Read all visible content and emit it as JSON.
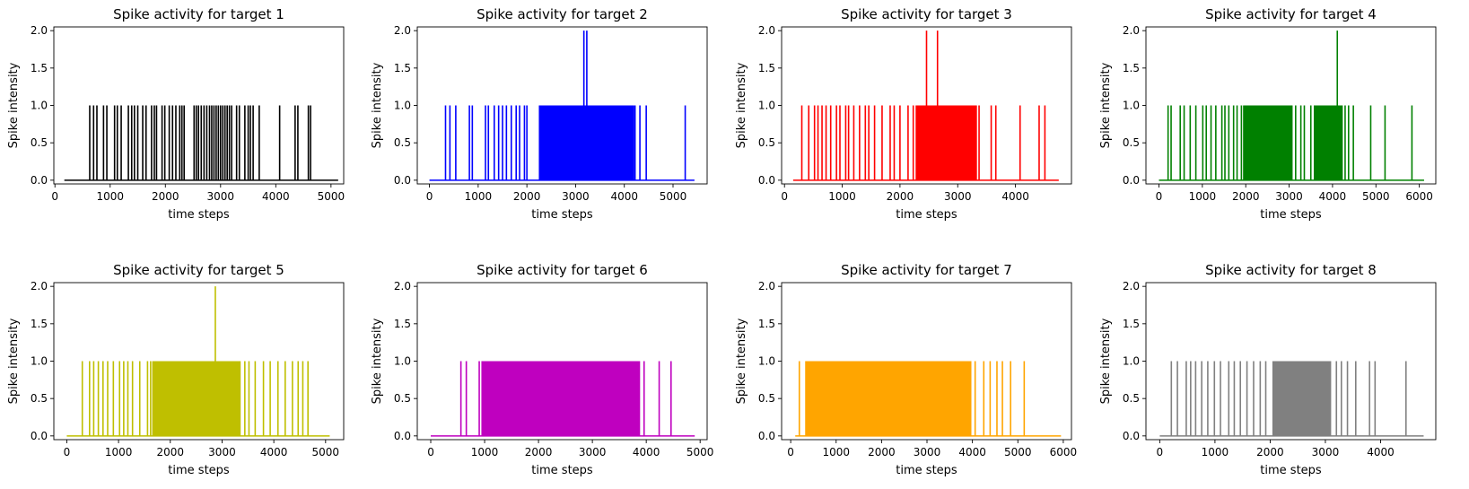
{
  "chart_data": [
    {
      "type": "line",
      "title": "Spike activity for target 1",
      "xlabel": "time steps",
      "ylabel": "Spike intensity",
      "color": "#000000",
      "xlim": [
        -20,
        5230
      ],
      "ylim": [
        -0.05,
        2.05
      ],
      "xticks": [
        0,
        1000,
        2000,
        3000,
        4000,
        5000
      ],
      "yticks": [
        0.0,
        0.5,
        1.0,
        1.5,
        2.0
      ],
      "ytick_labels": [
        "0.0",
        "0.5",
        "1.0",
        "1.5",
        "2.0"
      ],
      "range": [
        170,
        5130
      ],
      "spikes": [
        630,
        700,
        760,
        880,
        940,
        1080,
        1130,
        1200,
        1330,
        1390,
        1440,
        1500,
        1590,
        1650,
        1750,
        1800,
        1840,
        1940,
        1990,
        2070,
        2130,
        2190,
        2260,
        2300,
        2340,
        2520,
        2560,
        2600,
        2650,
        2700,
        2750,
        2800,
        2840,
        2880,
        2920,
        2960,
        3000,
        3040,
        3080,
        3120,
        3160,
        3200,
        3290,
        3340,
        3440,
        3500,
        3540,
        3590,
        3700,
        4070,
        4350,
        4400,
        4590,
        4630
      ],
      "peaks": []
    },
    {
      "type": "line",
      "title": "Spike activity for target 2",
      "xlabel": "time steps",
      "ylabel": "Spike intensity",
      "color": "#0000ff",
      "xlim": [
        -250,
        5700
      ],
      "ylim": [
        -0.05,
        2.05
      ],
      "xticks": [
        0,
        1000,
        2000,
        3000,
        4000,
        5000
      ],
      "yticks": [
        0.0,
        0.5,
        1.0,
        1.5,
        2.0
      ],
      "ytick_labels": [
        "0.0",
        "0.5",
        "1.0",
        "1.5",
        "2.0"
      ],
      "range": [
        0,
        5440
      ],
      "spikes": [
        330,
        420,
        540,
        820,
        880,
        1150,
        1210,
        1330,
        1420,
        1500,
        1580,
        1680,
        1780,
        1850,
        1950,
        2000,
        2260,
        4220,
        4320,
        4450,
        5250
      ],
      "dense": [
        [
          2270,
          4200,
          13
        ]
      ],
      "peaks": [
        [
          3170,
          2
        ],
        [
          3230,
          2
        ]
      ]
    },
    {
      "type": "line",
      "title": "Spike activity for target 3",
      "xlabel": "time steps",
      "ylabel": "Spike intensity",
      "color": "#ff0000",
      "xlim": [
        -50,
        4970
      ],
      "ylim": [
        -0.05,
        2.05
      ],
      "xticks": [
        0,
        1000,
        2000,
        3000,
        4000
      ],
      "yticks": [
        0.0,
        0.5,
        1.0,
        1.5,
        2.0
      ],
      "ytick_labels": [
        "0.0",
        "0.5",
        "1.0",
        "1.5",
        "2.0"
      ],
      "range": [
        150,
        4750
      ],
      "spikes": [
        300,
        420,
        520,
        580,
        650,
        720,
        800,
        900,
        960,
        1060,
        1110,
        1200,
        1300,
        1400,
        1460,
        1560,
        1690,
        1830,
        1900,
        2000,
        2140,
        2230,
        3370,
        3580,
        3660,
        4080,
        4410,
        4510
      ],
      "dense": [
        [
          2280,
          3330,
          12
        ]
      ],
      "peaks": [
        [
          2460,
          2
        ],
        [
          2650,
          2
        ]
      ]
    },
    {
      "type": "line",
      "title": "Spike activity for target 4",
      "xlabel": "time steps",
      "ylabel": "Spike intensity",
      "color": "#008000",
      "xlim": [
        -300,
        6380
      ],
      "ylim": [
        -0.05,
        2.05
      ],
      "xticks": [
        0,
        1000,
        2000,
        3000,
        4000,
        5000,
        6000
      ],
      "yticks": [
        0.0,
        0.5,
        1.0,
        1.5,
        2.0
      ],
      "ytick_labels": [
        "0.0",
        "0.5",
        "1.0",
        "1.5",
        "2.0"
      ],
      "range": [
        0,
        6110
      ],
      "spikes": [
        210,
        280,
        490,
        580,
        720,
        850,
        1010,
        1090,
        1200,
        1310,
        1450,
        1520,
        1610,
        1720,
        1800,
        1900,
        3150,
        3270,
        3350,
        3500,
        4290,
        4370,
        4480,
        4880,
        5210,
        5830
      ],
      "dense": [
        [
          1950,
          3080,
          13
        ],
        [
          3580,
          4230,
          14
        ]
      ],
      "peaks": [
        [
          4110,
          2
        ]
      ]
    },
    {
      "type": "line",
      "title": "Spike activity for target 5",
      "xlabel": "time steps",
      "ylabel": "Spike intensity",
      "color": "#bfbf00",
      "xlim": [
        -250,
        5350
      ],
      "ylim": [
        -0.05,
        2.05
      ],
      "xticks": [
        0,
        1000,
        2000,
        3000,
        4000,
        5000
      ],
      "yticks": [
        0.0,
        0.5,
        1.0,
        1.5,
        2.0
      ],
      "ytick_labels": [
        "0.0",
        "0.5",
        "1.0",
        "1.5",
        "2.0"
      ],
      "range": [
        0,
        5080
      ],
      "spikes": [
        300,
        440,
        520,
        610,
        700,
        790,
        900,
        1020,
        1100,
        1180,
        1270,
        1410,
        1560,
        1620,
        3440,
        3520,
        3640,
        3800,
        3930,
        4080,
        4220,
        4360,
        4470,
        4560,
        4660
      ],
      "dense": [
        [
          1660,
          3350,
          13
        ]
      ],
      "peaks": [
        [
          2870,
          2
        ]
      ]
    },
    {
      "type": "line",
      "title": "Spike activity for target 6",
      "xlabel": "time steps",
      "ylabel": "Spike intensity",
      "color": "#bf00bf",
      "xlim": [
        -250,
        5130
      ],
      "ylim": [
        -0.05,
        2.05
      ],
      "xticks": [
        0,
        1000,
        2000,
        3000,
        4000,
        5000
      ],
      "yticks": [
        0.0,
        0.5,
        1.0,
        1.5,
        2.0
      ],
      "ytick_labels": [
        "0.0",
        "0.5",
        "1.0",
        "1.5",
        "2.0"
      ],
      "range": [
        0,
        4900
      ],
      "spikes": [
        560,
        660,
        900,
        3960,
        4240,
        4460
      ],
      "dense": [
        [
          950,
          3880,
          14
        ]
      ],
      "peaks": []
    },
    {
      "type": "line",
      "title": "Spike activity for target 7",
      "xlabel": "time steps",
      "ylabel": "Spike intensity",
      "color": "#ffa500",
      "xlim": [
        -200,
        6180
      ],
      "ylim": [
        -0.05,
        2.05
      ],
      "xticks": [
        0,
        1000,
        2000,
        3000,
        4000,
        5000,
        6000
      ],
      "yticks": [
        0.0,
        0.5,
        1.0,
        1.5,
        2.0
      ],
      "ytick_labels": [
        "0.0",
        "0.5",
        "1.0",
        "1.5",
        "2.0"
      ],
      "range": [
        100,
        5950
      ],
      "spikes": [
        190,
        4060,
        4250,
        4390,
        4540,
        4660,
        4840,
        5140
      ],
      "dense": [
        [
          330,
          3980,
          18
        ]
      ],
      "peaks": []
    },
    {
      "type": "line",
      "title": "Spike activity for target 8",
      "xlabel": "time steps",
      "ylabel": "Spike intensity",
      "color": "#808080",
      "xlim": [
        -250,
        5000
      ],
      "ylim": [
        -0.05,
        2.05
      ],
      "xticks": [
        0,
        1000,
        2000,
        3000,
        4000
      ],
      "yticks": [
        0.0,
        0.5,
        1.0,
        1.5,
        2.0
      ],
      "ytick_labels": [
        "0.0",
        "0.5",
        "1.0",
        "1.5",
        "2.0"
      ],
      "range": [
        0,
        4780
      ],
      "spikes": [
        210,
        320,
        480,
        560,
        650,
        760,
        870,
        990,
        1100,
        1250,
        1350,
        1460,
        1580,
        1700,
        1820,
        1920,
        3200,
        3290,
        3400,
        3550,
        3800,
        3900,
        4460
      ],
      "dense": [
        [
          2050,
          3100,
          11
        ]
      ],
      "peaks": []
    }
  ]
}
